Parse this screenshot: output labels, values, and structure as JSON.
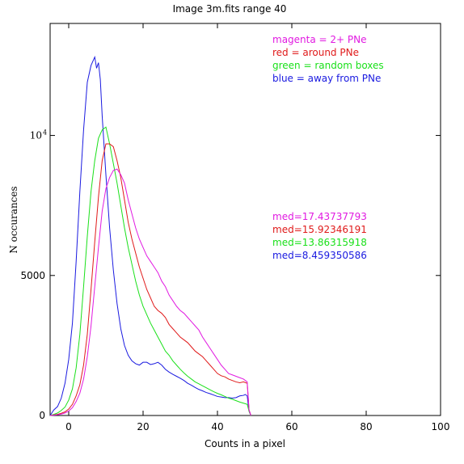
{
  "chart_data": {
    "type": "line",
    "title": "Image 3m.fits    range 40",
    "xlabel": "Counts in a pixel",
    "ylabel": "N occurances",
    "xlim": [
      -5,
      100
    ],
    "ylim": [
      0,
      14000
    ],
    "x_ticks": [
      {
        "value": 0,
        "label": "0"
      },
      {
        "value": 20,
        "label": "20"
      },
      {
        "value": 40,
        "label": "40"
      },
      {
        "value": 60,
        "label": "60"
      },
      {
        "value": 80,
        "label": "80"
      },
      {
        "value": 100,
        "label": "100"
      }
    ],
    "y_ticks": [
      {
        "value": 0,
        "label": "0"
      },
      {
        "value": 5000,
        "label": "5000"
      },
      {
        "value": 10000,
        "label": "10",
        "exponent": "4"
      }
    ],
    "legend": [
      {
        "text": "magenta = 2+ PNe",
        "color": "#e11ae1"
      },
      {
        "text": "red = around PNe",
        "color": "#e01a1a"
      },
      {
        "text": "green = random boxes",
        "color": "#1ae01a"
      },
      {
        "text": "blue = away from PNe",
        "color": "#1a1ae0"
      }
    ],
    "stats": [
      {
        "text": "med=17.43737793",
        "color": "#e11ae1"
      },
      {
        "text": "med=15.92346191",
        "color": "#e01a1a"
      },
      {
        "text": "med=13.86315918",
        "color": "#1ae01a"
      },
      {
        "text": "med=8.459350586",
        "color": "#1a1ae0"
      }
    ],
    "series": [
      {
        "color": "#1a1ae0",
        "x": [
          -5,
          -4,
          -3,
          -2,
          -1,
          0,
          1,
          2,
          3,
          4,
          5,
          6,
          7,
          7.5,
          8,
          8.5,
          9,
          10,
          11,
          12,
          13,
          14,
          15,
          16,
          17,
          18,
          19,
          20,
          21,
          22,
          23,
          24,
          25,
          26,
          27,
          28,
          29,
          30,
          31,
          32,
          33,
          34,
          35,
          36,
          37,
          38,
          39,
          40,
          41,
          42,
          43,
          44,
          45,
          46,
          47,
          47.5,
          48,
          48.5,
          49
        ],
        "y": [
          0,
          200,
          320,
          620,
          1150,
          2000,
          3300,
          5500,
          8000,
          10200,
          11900,
          12500,
          12800,
          12400,
          12600,
          12000,
          10700,
          8600,
          6700,
          5200,
          4000,
          3100,
          2500,
          2150,
          1950,
          1850,
          1800,
          1900,
          1900,
          1820,
          1850,
          1900,
          1800,
          1650,
          1550,
          1470,
          1400,
          1330,
          1250,
          1150,
          1080,
          1000,
          930,
          880,
          820,
          780,
          730,
          680,
          660,
          640,
          640,
          620,
          640,
          700,
          720,
          750,
          700,
          150,
          0
        ]
      },
      {
        "color": "#1ae01a",
        "x": [
          -5,
          -4,
          -3,
          -2,
          -1,
          0,
          1,
          2,
          3,
          4,
          5,
          6,
          7,
          8,
          9,
          10,
          11,
          12,
          13,
          14,
          15,
          16,
          17,
          18,
          19,
          20,
          21,
          22,
          23,
          24,
          25,
          26,
          27,
          28,
          29,
          30,
          31,
          32,
          33,
          34,
          35,
          36,
          37,
          38,
          39,
          40,
          41,
          42,
          43,
          44,
          45,
          46,
          47,
          48,
          48.5,
          49
        ],
        "y": [
          0,
          40,
          90,
          180,
          300,
          550,
          950,
          1700,
          2900,
          4600,
          6400,
          8000,
          9100,
          9900,
          10200,
          10300,
          9700,
          9000,
          8300,
          7500,
          6700,
          6000,
          5400,
          4800,
          4300,
          3900,
          3600,
          3300,
          3050,
          2800,
          2550,
          2300,
          2150,
          1950,
          1800,
          1650,
          1520,
          1400,
          1300,
          1200,
          1130,
          1060,
          990,
          920,
          850,
          790,
          740,
          680,
          620,
          580,
          530,
          480,
          440,
          400,
          150,
          0
        ]
      },
      {
        "color": "#e01a1a",
        "x": [
          -5,
          -4,
          -3,
          -2,
          -1,
          0,
          1,
          2,
          3,
          4,
          5,
          6,
          7,
          8,
          9,
          10,
          11,
          12,
          13,
          14,
          15,
          16,
          17,
          18,
          19,
          20,
          21,
          22,
          23,
          24,
          25,
          26,
          27,
          28,
          29,
          30,
          31,
          32,
          33,
          34,
          35,
          36,
          37,
          38,
          39,
          40,
          41,
          42,
          43,
          44,
          45,
          46,
          47,
          48,
          48.5,
          49
        ],
        "y": [
          0,
          20,
          40,
          80,
          130,
          230,
          400,
          700,
          1100,
          1800,
          2900,
          4500,
          6200,
          7800,
          9100,
          9700,
          9700,
          9600,
          9100,
          8500,
          7700,
          6900,
          6300,
          5800,
          5300,
          4900,
          4500,
          4200,
          3900,
          3750,
          3650,
          3500,
          3250,
          3100,
          2950,
          2800,
          2700,
          2600,
          2450,
          2300,
          2200,
          2100,
          1950,
          1800,
          1650,
          1500,
          1420,
          1380,
          1300,
          1250,
          1200,
          1170,
          1200,
          1150,
          200,
          0
        ]
      },
      {
        "color": "#e11ae1",
        "x": [
          -5,
          -4,
          -3,
          -2,
          -1,
          0,
          1,
          2,
          3,
          4,
          5,
          6,
          7,
          8,
          9,
          10,
          11,
          12,
          13,
          14,
          15,
          16,
          17,
          18,
          19,
          20,
          21,
          22,
          23,
          24,
          25,
          26,
          27,
          28,
          29,
          30,
          31,
          32,
          33,
          34,
          35,
          36,
          37,
          38,
          39,
          40,
          41,
          42,
          43,
          44,
          45,
          46,
          47,
          48,
          48.5,
          49
        ],
        "y": [
          0,
          10,
          25,
          50,
          90,
          160,
          280,
          500,
          800,
          1300,
          2100,
          3200,
          4600,
          6000,
          7300,
          8100,
          8500,
          8750,
          8800,
          8600,
          8300,
          7700,
          7200,
          6700,
          6300,
          6000,
          5700,
          5500,
          5300,
          5100,
          4800,
          4600,
          4300,
          4100,
          3900,
          3750,
          3650,
          3500,
          3350,
          3200,
          3050,
          2800,
          2600,
          2400,
          2200,
          2000,
          1800,
          1650,
          1500,
          1450,
          1400,
          1350,
          1300,
          1200,
          200,
          0
        ]
      }
    ]
  }
}
